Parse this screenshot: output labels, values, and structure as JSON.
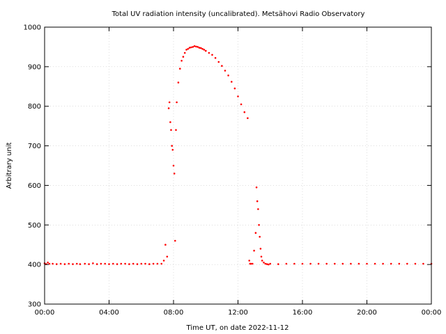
{
  "chart_data": {
    "type": "scatter",
    "title": "Total UV radiation intensity (uncalibrated). Metsähovi Radio Observatory",
    "xlabel": "Time UT, on date 2022-11-12",
    "ylabel": "Arbitrary unit",
    "xlim": [
      0,
      24
    ],
    "ylim": [
      300,
      1000
    ],
    "x_unit": "hours UT",
    "x_ticks": [
      0,
      4,
      8,
      12,
      16,
      20,
      24
    ],
    "x_tick_labels": [
      "00:00",
      "04:00",
      "08:00",
      "12:00",
      "16:00",
      "20:00",
      "00:00"
    ],
    "y_ticks": [
      300,
      400,
      500,
      600,
      700,
      800,
      900,
      1000
    ],
    "y_tick_labels": [
      "300",
      "400",
      "500",
      "600",
      "700",
      "800",
      "900",
      "1000"
    ],
    "grid": true,
    "marker_color": "#ff0000",
    "series": [
      {
        "x": [
          0.0,
          0.1,
          0.2,
          0.3,
          0.5,
          0.75,
          1.0,
          1.25,
          1.5,
          1.75,
          2.0,
          2.2,
          2.5,
          2.75,
          3.0,
          3.25,
          3.5,
          3.75,
          4.0,
          4.25,
          4.5,
          4.75,
          5.0,
          5.25,
          5.5,
          5.75,
          6.0,
          6.25,
          6.5,
          6.75,
          7.0,
          7.25,
          7.4,
          7.5,
          7.6,
          7.7,
          7.75,
          7.8,
          7.85,
          7.9,
          7.95,
          8.0,
          8.05,
          8.1,
          8.15,
          8.2,
          8.3,
          8.4,
          8.5,
          8.6,
          8.7,
          8.8,
          8.9,
          9.0,
          9.1,
          9.2,
          9.3,
          9.4,
          9.5,
          9.6,
          9.7,
          9.8,
          9.9,
          10.0,
          10.2,
          10.4,
          10.6,
          10.8,
          11.0,
          11.2,
          11.4,
          11.6,
          11.8,
          12.0,
          12.2,
          12.4,
          12.6,
          12.7,
          12.75,
          12.8,
          12.9,
          13.0,
          13.1,
          13.15,
          13.2,
          13.25,
          13.3,
          13.35,
          13.4,
          13.45,
          13.5,
          13.6,
          13.7,
          13.8,
          13.9,
          14.0,
          14.5,
          15.0,
          15.5,
          16.0,
          16.5,
          17.0,
          17.5,
          18.0,
          18.5,
          19.0,
          19.5,
          20.0,
          20.5,
          21.0,
          21.5,
          22.0,
          22.5,
          23.0,
          23.5,
          24.0
        ],
        "y": [
          403,
          401,
          405,
          402,
          402,
          401,
          402,
          401,
          402,
          401,
          402,
          401,
          402,
          401,
          403,
          401,
          402,
          402,
          401,
          402,
          401,
          402,
          402,
          401,
          402,
          401,
          402,
          402,
          401,
          402,
          402,
          402,
          410,
          450,
          420,
          795,
          810,
          760,
          740,
          700,
          690,
          650,
          630,
          460,
          740,
          810,
          860,
          895,
          915,
          925,
          935,
          943,
          945,
          948,
          949,
          950,
          952,
          951,
          950,
          948,
          947,
          945,
          943,
          940,
          935,
          930,
          922,
          912,
          902,
          890,
          878,
          862,
          845,
          825,
          805,
          785,
          770,
          410,
          402,
          402,
          402,
          435,
          480,
          595,
          560,
          540,
          500,
          470,
          440,
          420,
          410,
          405,
          402,
          401,
          400,
          402,
          401,
          402,
          402,
          402,
          402,
          402,
          402,
          402,
          402,
          402,
          402,
          402,
          402,
          402,
          402,
          402,
          402,
          402,
          402,
          402
        ]
      }
    ]
  }
}
